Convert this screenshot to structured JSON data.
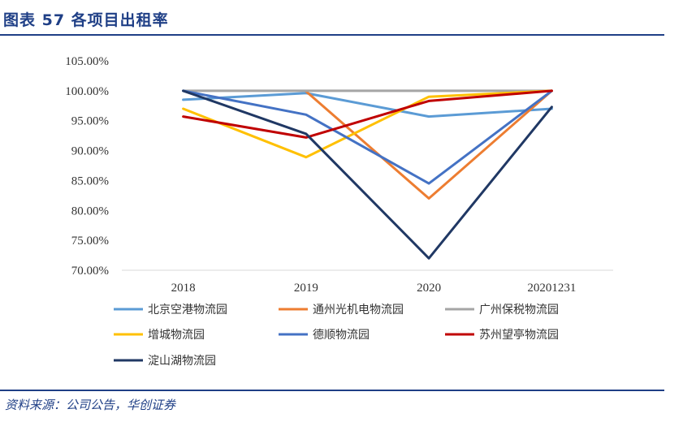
{
  "header": {
    "title": "图表 57  各项目出租率"
  },
  "footer": {
    "source": "资料来源：公司公告，华创证券"
  },
  "chart_data": {
    "type": "line",
    "title": "各项目出租率",
    "xlabel": "",
    "ylabel": "",
    "categories": [
      "2018",
      "2019",
      "2020",
      "20201231"
    ],
    "ylim": [
      70,
      105
    ],
    "yticks": [
      "105.00%",
      "100.00%",
      "95.00%",
      "90.00%",
      "85.00%",
      "80.00%",
      "75.00%",
      "70.00%"
    ],
    "grid": false,
    "legend_position": "bottom",
    "series": [
      {
        "name": "北京空港物流园",
        "color": "#5b9bd5",
        "values": [
          98.5,
          99.6,
          95.7,
          97.0
        ]
      },
      {
        "name": "通州光机电物流园",
        "color": "#ed7d31",
        "values": [
          null,
          99.9,
          82.0,
          100.0
        ]
      },
      {
        "name": "广州保税物流园",
        "color": "#a5a5a5",
        "values": [
          100.0,
          100.0,
          100.0,
          100.0
        ]
      },
      {
        "name": "增城物流园",
        "color": "#ffc000",
        "values": [
          97.0,
          88.9,
          99.0,
          100.0
        ]
      },
      {
        "name": "德顺物流园",
        "color": "#4472c4",
        "values": [
          100.0,
          96.0,
          84.5,
          100.0
        ]
      },
      {
        "name": "苏州望亭物流园",
        "color": "#c00000",
        "values": [
          95.7,
          92.2,
          98.3,
          100.0
        ]
      },
      {
        "name": "淀山湖物流园",
        "color": "#203864",
        "values": [
          100.0,
          92.8,
          72.0,
          97.3
        ]
      }
    ]
  }
}
